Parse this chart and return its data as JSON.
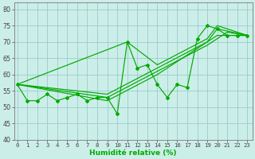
{
  "xlabel": "Humidité relative (%)",
  "bg_color": "#cceee8",
  "line_color": "#00aa00",
  "grid_color": "#99cccc",
  "ylim": [
    40,
    82
  ],
  "xlim": [
    -0.3,
    23.5
  ],
  "yticks": [
    40,
    45,
    50,
    55,
    60,
    65,
    70,
    75,
    80
  ],
  "xticks": [
    0,
    1,
    2,
    3,
    4,
    5,
    6,
    7,
    8,
    9,
    10,
    11,
    12,
    13,
    14,
    15,
    16,
    17,
    18,
    19,
    20,
    21,
    22,
    23
  ],
  "raw_y": [
    57,
    52,
    52,
    54,
    52,
    53,
    54,
    52,
    53,
    53,
    48,
    70,
    62,
    63,
    57,
    53,
    57,
    56,
    71,
    75,
    74,
    72,
    72,
    72
  ],
  "trend_lines": [
    {
      "x": [
        0,
        11,
        14,
        19,
        20,
        23
      ],
      "y": [
        57,
        70,
        63,
        71,
        75,
        72
      ]
    },
    {
      "x": [
        0,
        9,
        14,
        19,
        20,
        23
      ],
      "y": [
        57,
        54,
        62,
        70,
        74,
        72
      ]
    },
    {
      "x": [
        0,
        9,
        14,
        19,
        21,
        23
      ],
      "y": [
        57,
        53,
        61,
        69,
        73,
        72
      ]
    },
    {
      "x": [
        0,
        9,
        14,
        18,
        20,
        23
      ],
      "y": [
        57,
        52,
        60,
        68,
        72,
        72
      ]
    }
  ]
}
